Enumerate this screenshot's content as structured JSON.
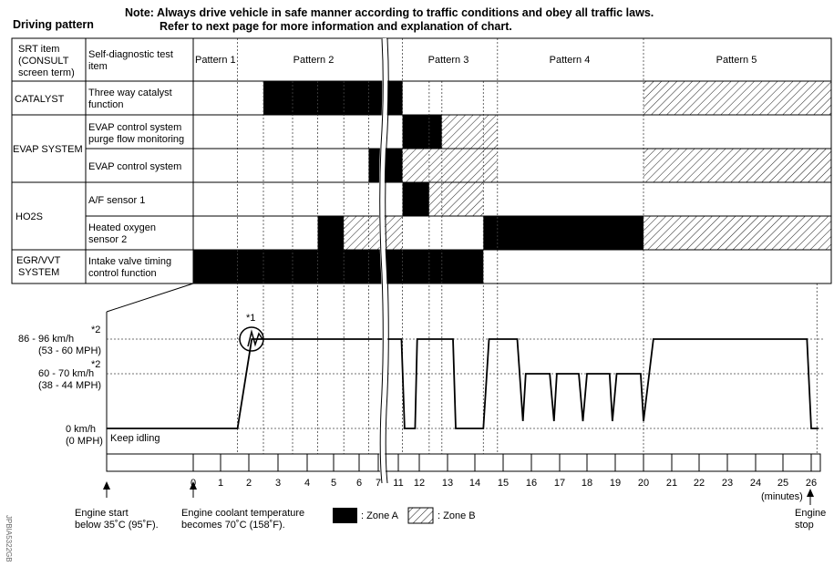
{
  "title": "Driving pattern",
  "note_line1": "Note: Always drive vehicle in safe manner according to traffic conditions and obey all traffic laws.",
  "note_line2": "Refer to next page for more information and explanation of chart.",
  "table": {
    "col1_header": [
      "SRT item",
      "(CONSULT",
      "screen term)"
    ],
    "col2_header": [
      "Self-diagnostic test",
      "item"
    ],
    "patterns": [
      "Pattern 1",
      "Pattern 2",
      "Pattern 3",
      "Pattern 4",
      "Pattern 5"
    ],
    "groups": [
      {
        "label": [
          "CATALYST"
        ]
      },
      {
        "label": [
          "EVAP SYSTEM"
        ]
      },
      {
        "label": [
          "HO2S"
        ]
      },
      {
        "label": [
          "EGR/VVT",
          "SYSTEM"
        ]
      }
    ],
    "items": [
      {
        "label": [
          "Three way catalyst",
          "function"
        ],
        "zones": [
          {
            "zone": "A",
            "from": 2.5,
            "to": 11.2
          },
          {
            "zone": "B",
            "from": 20,
            "to": 26.7
          }
        ]
      },
      {
        "label": [
          "EVAP control system",
          "purge flow monitoring"
        ],
        "zones": [
          {
            "zone": "A",
            "from": 11.2,
            "to": 12.8
          },
          {
            "zone": "B",
            "from": 12.8,
            "to": 14.8
          }
        ]
      },
      {
        "label": [
          "EVAP control system"
        ],
        "zones": [
          {
            "zone": "A",
            "from": 6.5,
            "to": 11.2
          },
          {
            "zone": "B",
            "from": 11.2,
            "to": 14.8
          },
          {
            "zone": "B",
            "from": 20,
            "to": 26.7
          }
        ]
      },
      {
        "label": [
          "A/F sensor 1"
        ],
        "zones": [
          {
            "zone": "A",
            "from": 11.2,
            "to": 12.35
          },
          {
            "zone": "B",
            "from": 12.35,
            "to": 14.3
          }
        ]
      },
      {
        "label": [
          "Heated oxygen",
          "sensor 2"
        ],
        "zones": [
          {
            "zone": "A",
            "from": 4.4,
            "to": 5.4
          },
          {
            "zone": "B",
            "from": 5.4,
            "to": 11.2
          },
          {
            "zone": "A",
            "from": 14.3,
            "to": 20
          },
          {
            "zone": "B",
            "from": 20,
            "to": 26.7
          }
        ]
      },
      {
        "label": [
          "Intake valve timing",
          "control function"
        ],
        "zones": [
          {
            "zone": "A",
            "from": 0,
            "to": 14.3
          }
        ]
      }
    ]
  },
  "speed_chart": {
    "levels": {
      "high": {
        "kmh": "86 - 96 km/h",
        "mph": "(53 - 60 MPH)",
        "note": "*2"
      },
      "mid": {
        "kmh": "60 - 70 km/h",
        "mph": "(38 - 44 MPH)",
        "note": "*2"
      },
      "zero": {
        "kmh": "0 km/h",
        "mph": "(0 MPH)"
      }
    },
    "keep_idling": "Keep idling",
    "circle_note": "*1",
    "x_ticks": [
      "0",
      "1",
      "2",
      "3",
      "4",
      "5",
      "6",
      "7",
      "11",
      "12",
      "13",
      "14",
      "15",
      "16",
      "17",
      "18",
      "19",
      "20",
      "21",
      "22",
      "23",
      "24",
      "25",
      "26"
    ],
    "x_unit": "(minutes)",
    "profile": [
      [
        "start",
        "zero"
      ],
      [
        1.6,
        "zero"
      ],
      [
        2.1,
        "high"
      ],
      [
        11.15,
        "high"
      ],
      [
        11.3,
        "zero"
      ],
      [
        11.8,
        "zero"
      ],
      [
        11.9,
        "high"
      ],
      [
        13.2,
        "high"
      ],
      [
        13.3,
        "zero"
      ],
      [
        14.3,
        "zero"
      ],
      [
        14.5,
        "high"
      ],
      [
        15.5,
        "high"
      ],
      [
        15.7,
        "dip"
      ],
      [
        15.8,
        "mid"
      ],
      [
        16.65,
        "mid"
      ],
      [
        16.8,
        "dip"
      ],
      [
        16.9,
        "mid"
      ],
      [
        17.7,
        "mid"
      ],
      [
        17.85,
        "dip"
      ],
      [
        18,
        "mid"
      ],
      [
        18.8,
        "mid"
      ],
      [
        18.9,
        "dip"
      ],
      [
        19.05,
        "mid"
      ],
      [
        19.9,
        "mid"
      ],
      [
        20,
        "dip"
      ],
      [
        20.35,
        "high"
      ],
      [
        25.85,
        "high"
      ],
      [
        26,
        "zero"
      ],
      [
        26.25,
        "zero"
      ]
    ]
  },
  "annotations": {
    "engine_start": [
      "Engine start",
      "below 35˚C (95˚F)."
    ],
    "coolant": [
      "Engine coolant temperature",
      "becomes 70˚C (158˚F)."
    ],
    "engine_stop": [
      "Engine",
      "stop"
    ]
  },
  "legend": {
    "zone_a": ": Zone A",
    "zone_b": ": Zone B"
  },
  "watermark": "JPBIA5322GB"
}
